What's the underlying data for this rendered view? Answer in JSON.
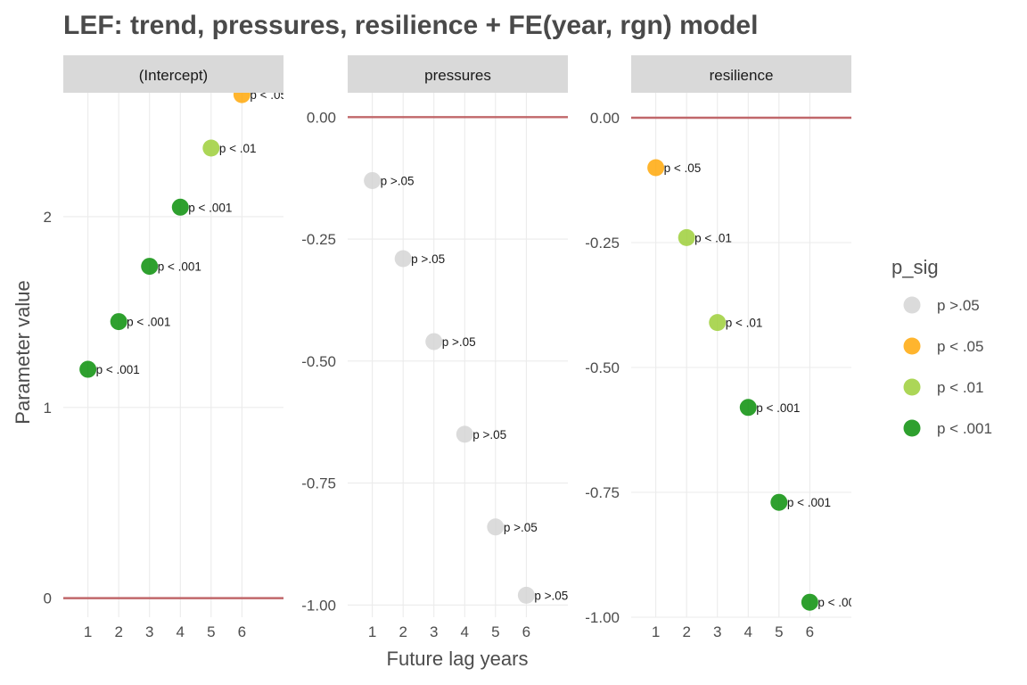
{
  "chart_data": {
    "type": "scatter",
    "title": "LEF: trend, pressures, resilience + FE(year, rgn) model",
    "xlabel": "Future lag years",
    "ylabel": "Parameter value",
    "x_ticks": [
      1,
      2,
      3,
      4,
      5,
      6
    ],
    "reference_line_y": 0,
    "reference_line_color": "#c0676a",
    "grid": true,
    "legend": {
      "title": "p_sig",
      "placement": "right",
      "entries": [
        {
          "label": "p >.05",
          "color": "#d3d3d3"
        },
        {
          "label": "p < .05",
          "color": "#ffa500"
        },
        {
          "label": "p < .01",
          "color": "#9acd32"
        },
        {
          "label": "p < .001",
          "color": "#008b00"
        }
      ]
    },
    "panels": [
      {
        "facet": "(Intercept)",
        "ylim": [
          -0.1,
          2.65
        ],
        "y_ticks": [
          0,
          1,
          2
        ],
        "y_tick_labels": [
          "0",
          "1",
          "2"
        ],
        "points": [
          {
            "x": 1,
            "y": 1.2,
            "p_sig": "p < .001"
          },
          {
            "x": 2,
            "y": 1.45,
            "p_sig": "p < .001"
          },
          {
            "x": 3,
            "y": 1.74,
            "p_sig": "p < .001"
          },
          {
            "x": 4,
            "y": 2.05,
            "p_sig": "p < .001"
          },
          {
            "x": 5,
            "y": 2.36,
            "p_sig": "p < .01"
          },
          {
            "x": 6,
            "y": 2.64,
            "p_sig": "p < .05"
          }
        ]
      },
      {
        "facet": "pressures",
        "ylim": [
          -1.025,
          0.05
        ],
        "y_ticks": [
          0,
          -0.25,
          -0.5,
          -0.75,
          -1.0
        ],
        "y_tick_labels": [
          "0.00",
          "-0.25",
          "-0.50",
          "-0.75",
          "-1.00"
        ],
        "points": [
          {
            "x": 1,
            "y": -0.13,
            "p_sig": "p >.05"
          },
          {
            "x": 2,
            "y": -0.29,
            "p_sig": "p >.05"
          },
          {
            "x": 3,
            "y": -0.46,
            "p_sig": "p >.05"
          },
          {
            "x": 4,
            "y": -0.65,
            "p_sig": "p >.05"
          },
          {
            "x": 5,
            "y": -0.84,
            "p_sig": "p >.05"
          },
          {
            "x": 6,
            "y": -0.98,
            "p_sig": "p >.05"
          }
        ]
      },
      {
        "facet": "resilience",
        "ylim": [
          -1.0,
          0.05
        ],
        "y_ticks": [
          0,
          -0.25,
          -0.5,
          -0.75,
          -1.0
        ],
        "y_tick_labels": [
          "0.00",
          "-0.25",
          "-0.50",
          "-0.75",
          "-1.00"
        ],
        "points": [
          {
            "x": 1,
            "y": -0.1,
            "p_sig": "p < .05"
          },
          {
            "x": 2,
            "y": -0.24,
            "p_sig": "p < .01"
          },
          {
            "x": 3,
            "y": -0.41,
            "p_sig": "p < .01"
          },
          {
            "x": 4,
            "y": -0.58,
            "p_sig": "p < .001"
          },
          {
            "x": 5,
            "y": -0.77,
            "p_sig": "p < .001"
          },
          {
            "x": 6,
            "y": -0.97,
            "p_sig": "p < .001"
          }
        ]
      }
    ]
  }
}
